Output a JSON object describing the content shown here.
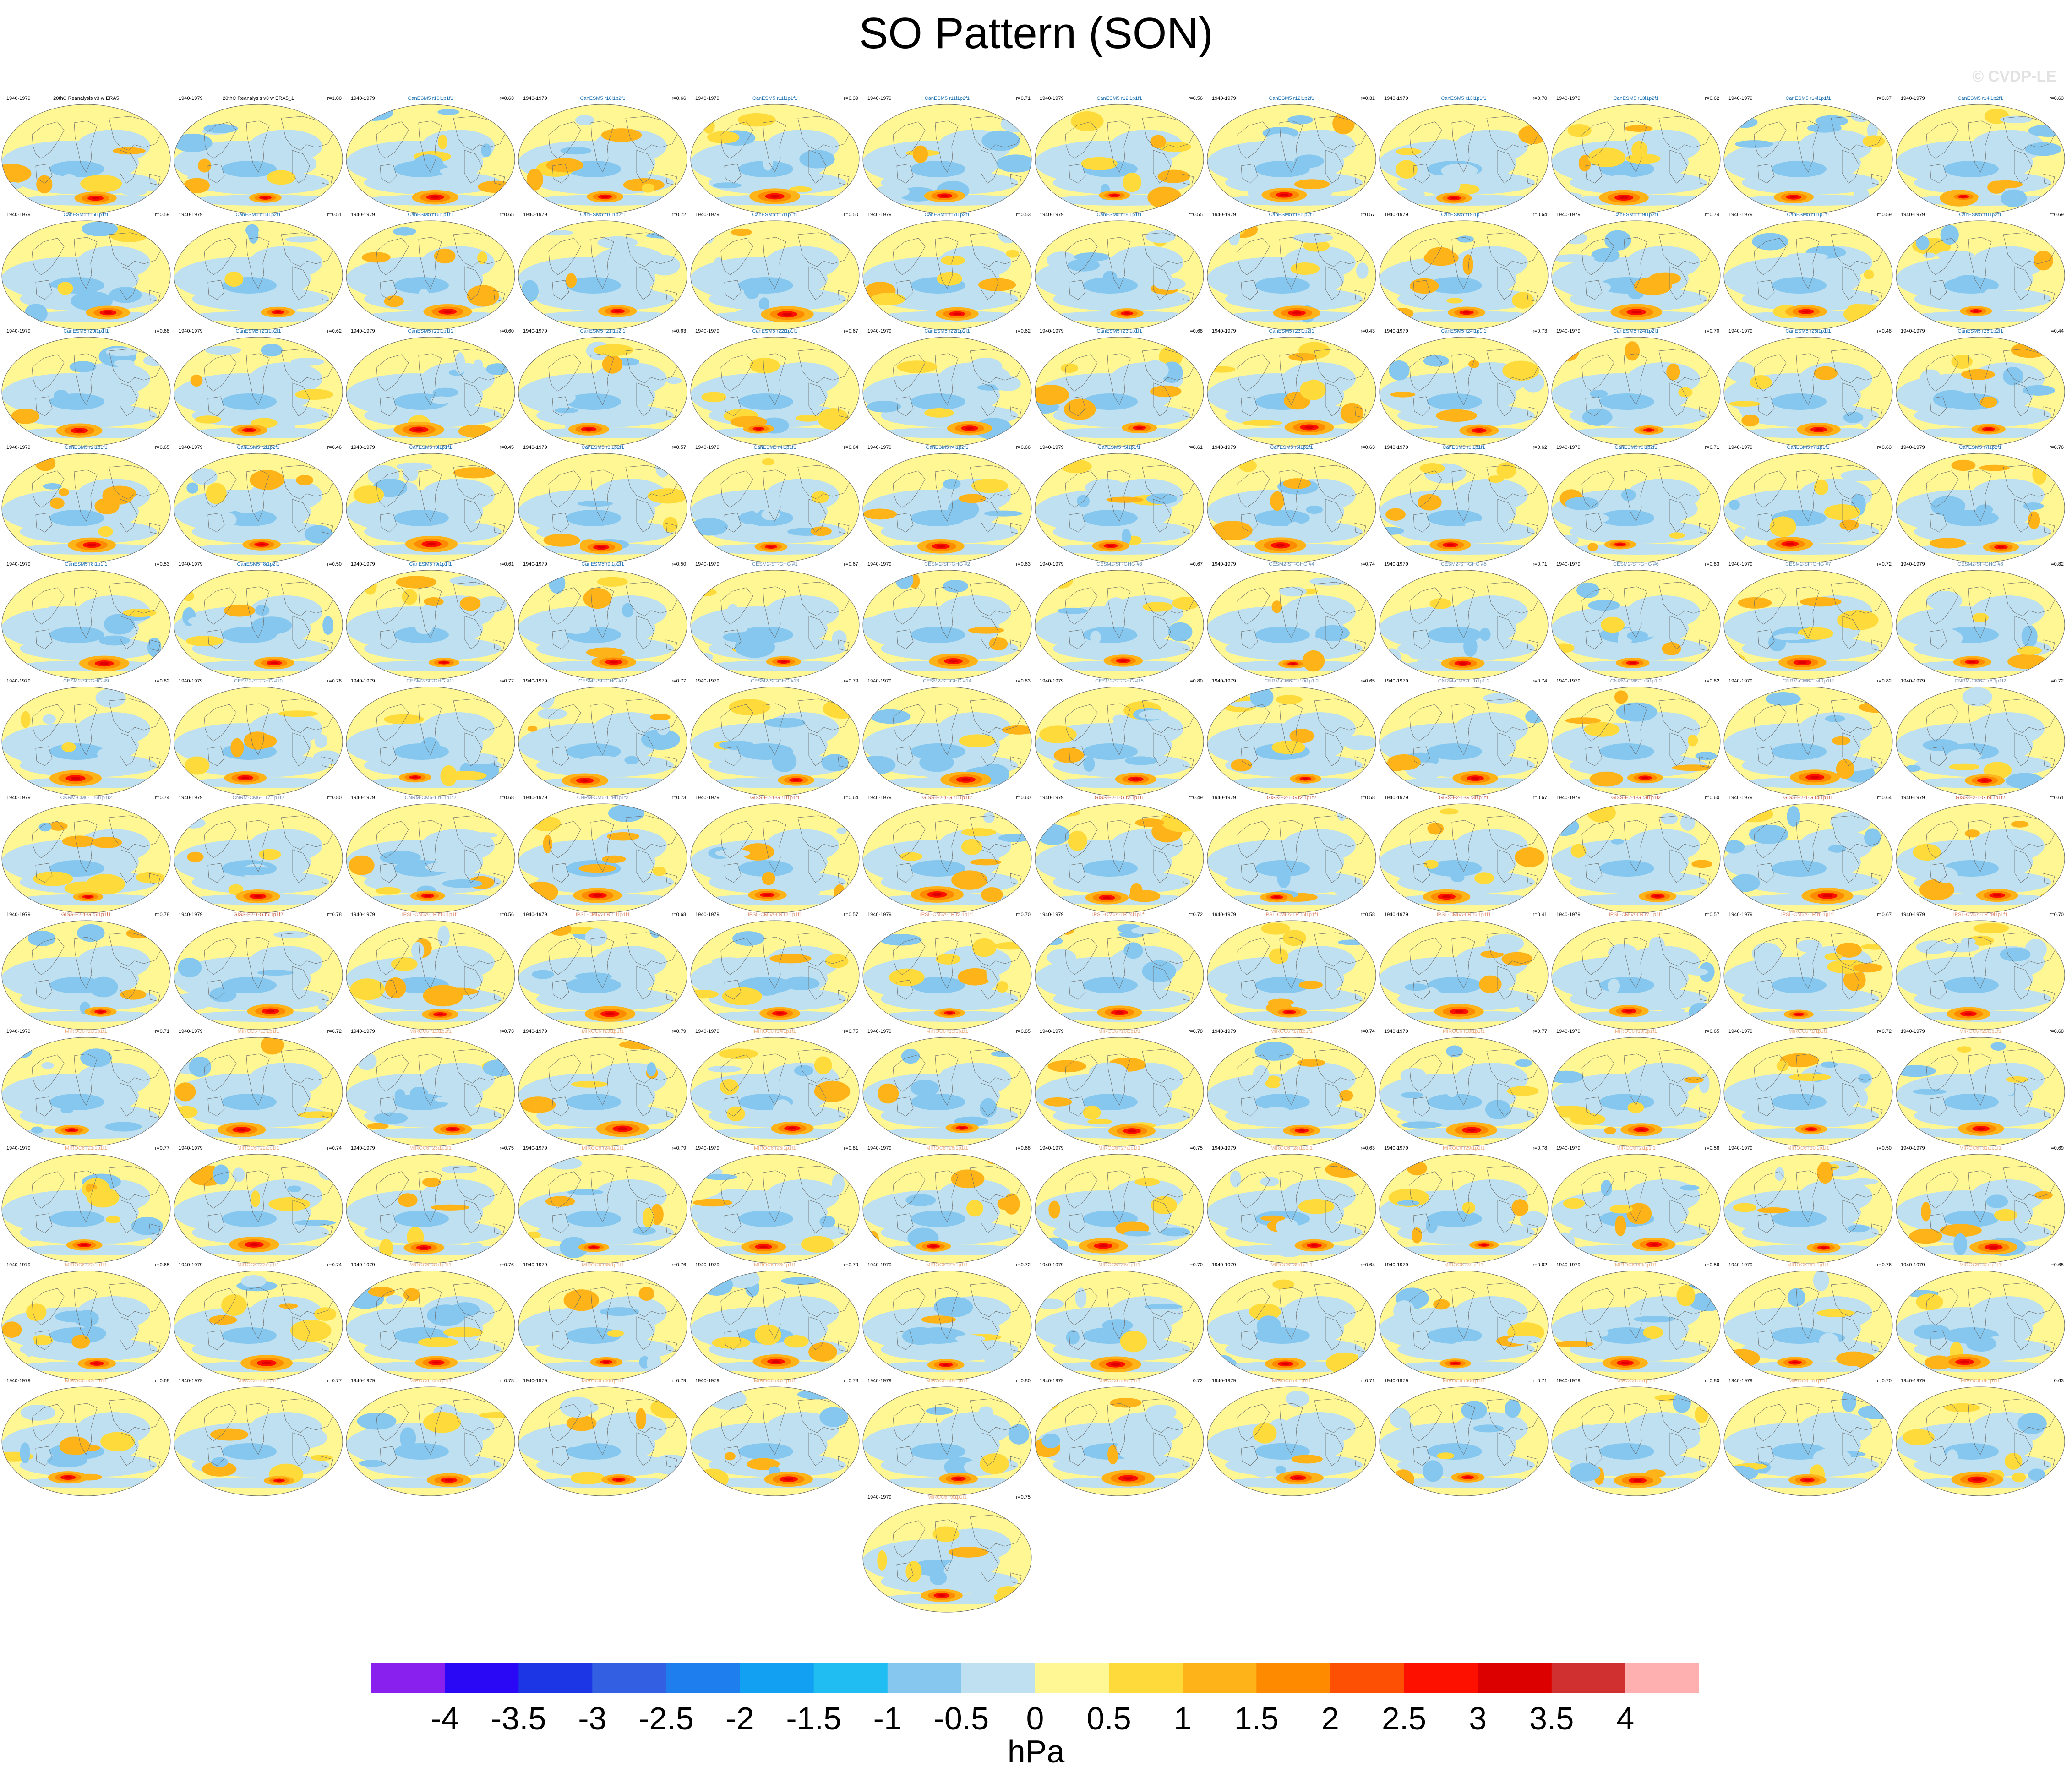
{
  "title": "SO Pattern (SON)",
  "watermark": "© CVDP-LE",
  "units": "hPa",
  "panel_period": "1940-1979",
  "colorbar": {
    "ticks": [
      "-4",
      "-3.5",
      "-3",
      "-2.5",
      "-2",
      "-1.5",
      "-1",
      "-0.5",
      "0",
      "0.5",
      "1",
      "1.5",
      "2",
      "2.5",
      "3",
      "3.5",
      "4"
    ],
    "colors": [
      "#8a20ee",
      "#2a08f5",
      "#1c35e5",
      "#3360e2",
      "#1f7eed",
      "#12a0f3",
      "#20bdf2",
      "#85c7ee",
      "#bfe0f0",
      "#fff694",
      "#fedb3a",
      "#feb419",
      "#fe8a00",
      "#fd5005",
      "#fe1000",
      "#dd0000",
      "#d03030",
      "#feb0b0"
    ]
  },
  "model_colors": {
    "obs": "#000000",
    "CanESM5": "#1a6eae",
    "CESM2-SF-GHG": "#6890b0",
    "CNRM-CM6-1": "#8090b0",
    "GISS-E2-1-G": "#c85a3a",
    "IPSL-CM6A-LR": "#e08c6c",
    "MIROC6": "#ecaa78"
  },
  "panels": [
    {
      "name": "20thC Reanalysis v3 w ERA5",
      "corr": "",
      "m": "obs"
    },
    {
      "name": "20thC Reanalysis v3 w ERA5_1",
      "corr": "r=1.00",
      "m": "obs"
    },
    {
      "name": "CanESM5 r10i1p1f1",
      "corr": "r=0.63",
      "m": "CanESM5"
    },
    {
      "name": "CanESM5 r10i1p2f1",
      "corr": "r=0.66",
      "m": "CanESM5"
    },
    {
      "name": "CanESM5 r11i1p1f1",
      "corr": "r=0.39",
      "m": "CanESM5"
    },
    {
      "name": "CanESM5 r11i1p2f1",
      "corr": "r=0.71",
      "m": "CanESM5"
    },
    {
      "name": "CanESM5 r12i1p1f1",
      "corr": "r=0.56",
      "m": "CanESM5"
    },
    {
      "name": "CanESM5 r12i1p2f1",
      "corr": "r=0.31",
      "m": "CanESM5"
    },
    {
      "name": "CanESM5 r13i1p1f1",
      "corr": "r=0.70",
      "m": "CanESM5"
    },
    {
      "name": "CanESM5 r13i1p2f1",
      "corr": "r=0.62",
      "m": "CanESM5"
    },
    {
      "name": "CanESM5 r14i1p1f1",
      "corr": "r=0.37",
      "m": "CanESM5"
    },
    {
      "name": "CanESM5 r14i1p2f1",
      "corr": "r=0.63",
      "m": "CanESM5"
    },
    {
      "name": "CanESM5 r15i1p1f1",
      "corr": "r=0.59",
      "m": "CanESM5"
    },
    {
      "name": "CanESM5 r15i1p2f1",
      "corr": "r=0.51",
      "m": "CanESM5"
    },
    {
      "name": "CanESM5 r16i1p1f1",
      "corr": "r=0.65",
      "m": "CanESM5"
    },
    {
      "name": "CanESM5 r16i1p2f1",
      "corr": "r=0.72",
      "m": "CanESM5"
    },
    {
      "name": "CanESM5 r17i1p1f1",
      "corr": "r=0.50",
      "m": "CanESM5"
    },
    {
      "name": "CanESM5 r17i1p2f1",
      "corr": "r=0.53",
      "m": "CanESM5"
    },
    {
      "name": "CanESM5 r18i1p1f1",
      "corr": "r=0.55",
      "m": "CanESM5"
    },
    {
      "name": "CanESM5 r18i1p2f1",
      "corr": "r=0.57",
      "m": "CanESM5"
    },
    {
      "name": "CanESM5 r19i1p1f1",
      "corr": "r=0.64",
      "m": "CanESM5"
    },
    {
      "name": "CanESM5 r19i1p2f1",
      "corr": "r=0.74",
      "m": "CanESM5"
    },
    {
      "name": "CanESM5 r1i1p1f1",
      "corr": "r=0.59",
      "m": "CanESM5"
    },
    {
      "name": "CanESM5 r1i1p2f1",
      "corr": "r=0.69",
      "m": "CanESM5"
    },
    {
      "name": "CanESM5 r20i1p1f1",
      "corr": "r=0.68",
      "m": "CanESM5"
    },
    {
      "name": "CanESM5 r20i1p2f1",
      "corr": "r=0.62",
      "m": "CanESM5"
    },
    {
      "name": "CanESM5 r21i1p1f1",
      "corr": "r=0.60",
      "m": "CanESM5"
    },
    {
      "name": "CanESM5 r21i1p2f1",
      "corr": "r=0.63",
      "m": "CanESM5"
    },
    {
      "name": "CanESM5 r22i1p1f1",
      "corr": "r=0.67",
      "m": "CanESM5"
    },
    {
      "name": "CanESM5 r22i1p2f1",
      "corr": "r=0.62",
      "m": "CanESM5"
    },
    {
      "name": "CanESM5 r23i1p1f1",
      "corr": "r=0.68",
      "m": "CanESM5"
    },
    {
      "name": "CanESM5 r23i1p2f1",
      "corr": "r=0.43",
      "m": "CanESM5"
    },
    {
      "name": "CanESM5 r24i1p1f1",
      "corr": "r=0.73",
      "m": "CanESM5"
    },
    {
      "name": "CanESM5 r24i1p2f1",
      "corr": "r=0.70",
      "m": "CanESM5"
    },
    {
      "name": "CanESM5 r25i1p1f1",
      "corr": "r=0.48",
      "m": "CanESM5"
    },
    {
      "name": "CanESM5 r25i1p2f1",
      "corr": "r=0.44",
      "m": "CanESM5"
    },
    {
      "name": "CanESM5 r2i1p1f1",
      "corr": "r=0.65",
      "m": "CanESM5"
    },
    {
      "name": "CanESM5 r2i1p2f1",
      "corr": "r=0.46",
      "m": "CanESM5"
    },
    {
      "name": "CanESM5 r3i1p1f1",
      "corr": "r=0.45",
      "m": "CanESM5"
    },
    {
      "name": "CanESM5 r3i1p2f1",
      "corr": "r=0.57",
      "m": "CanESM5"
    },
    {
      "name": "CanESM5 r4i1p1f1",
      "corr": "r=0.64",
      "m": "CanESM5"
    },
    {
      "name": "CanESM5 r4i1p2f1",
      "corr": "r=0.66",
      "m": "CanESM5"
    },
    {
      "name": "CanESM5 r5i1p1f1",
      "corr": "r=0.61",
      "m": "CanESM5"
    },
    {
      "name": "CanESM5 r5i1p2f1",
      "corr": "r=0.63",
      "m": "CanESM5"
    },
    {
      "name": "CanESM5 r6i1p1f1",
      "corr": "r=0.62",
      "m": "CanESM5"
    },
    {
      "name": "CanESM5 r6i1p2f1",
      "corr": "r=0.71",
      "m": "CanESM5"
    },
    {
      "name": "CanESM5 r7i1p1f1",
      "corr": "r=0.63",
      "m": "CanESM5"
    },
    {
      "name": "CanESM5 r7i1p2f1",
      "corr": "r=0.76",
      "m": "CanESM5"
    },
    {
      "name": "CanESM5 r8i1p1f1",
      "corr": "r=0.53",
      "m": "CanESM5"
    },
    {
      "name": "CanESM5 r8i1p2f1",
      "corr": "r=0.50",
      "m": "CanESM5"
    },
    {
      "name": "CanESM5 r9i1p1f1",
      "corr": "r=0.61",
      "m": "CanESM5"
    },
    {
      "name": "CanESM5 r9i1p2f1",
      "corr": "r=0.50",
      "m": "CanESM5"
    },
    {
      "name": "CESM2-SF-GHG #1",
      "corr": "r=0.67",
      "m": "CESM2-SF-GHG"
    },
    {
      "name": "CESM2-SF-GHG #2",
      "corr": "r=0.63",
      "m": "CESM2-SF-GHG"
    },
    {
      "name": "CESM2-SF-GHG #3",
      "corr": "r=0.67",
      "m": "CESM2-SF-GHG"
    },
    {
      "name": "CESM2-SF-GHG #4",
      "corr": "r=0.74",
      "m": "CESM2-SF-GHG"
    },
    {
      "name": "CESM2-SF-GHG #5",
      "corr": "r=0.71",
      "m": "CESM2-SF-GHG"
    },
    {
      "name": "CESM2-SF-GHG #6",
      "corr": "r=0.83",
      "m": "CESM2-SF-GHG"
    },
    {
      "name": "CESM2-SF-GHG #7",
      "corr": "r=0.72",
      "m": "CESM2-SF-GHG"
    },
    {
      "name": "CESM2-SF-GHG #8",
      "corr": "r=0.82",
      "m": "CESM2-SF-GHG"
    },
    {
      "name": "CESM2-SF-GHG #9",
      "corr": "r=0.82",
      "m": "CESM2-SF-GHG"
    },
    {
      "name": "CESM2-SF-GHG #10",
      "corr": "r=0.78",
      "m": "CESM2-SF-GHG"
    },
    {
      "name": "CESM2-SF-GHG #11",
      "corr": "r=0.77",
      "m": "CESM2-SF-GHG"
    },
    {
      "name": "CESM2-SF-GHG #12",
      "corr": "r=0.77",
      "m": "CESM2-SF-GHG"
    },
    {
      "name": "CESM2-SF-GHG #13",
      "corr": "r=0.79",
      "m": "CESM2-SF-GHG"
    },
    {
      "name": "CESM2-SF-GHG #14",
      "corr": "r=0.83",
      "m": "CESM2-SF-GHG"
    },
    {
      "name": "CESM2-SF-GHG #15",
      "corr": "r=0.80",
      "m": "CESM2-SF-GHG"
    },
    {
      "name": "CNRM-CM6-1 r10i1p1f2",
      "corr": "r=0.65",
      "m": "CNRM-CM6-1"
    },
    {
      "name": "CNRM-CM6-1 r1i1p1f2",
      "corr": "r=0.74",
      "m": "CNRM-CM6-1"
    },
    {
      "name": "CNRM-CM6-1 r3i1p1f2",
      "corr": "r=0.82",
      "m": "CNRM-CM6-1"
    },
    {
      "name": "CNRM-CM6-1 r4i1p1f2",
      "corr": "r=0.82",
      "m": "CNRM-CM6-1"
    },
    {
      "name": "CNRM-CM6-1 r5i1p1f2",
      "corr": "r=0.72",
      "m": "CNRM-CM6-1"
    },
    {
      "name": "CNRM-CM6-1 r6i1p1f2",
      "corr": "r=0.74",
      "m": "CNRM-CM6-1"
    },
    {
      "name": "CNRM-CM6-1 r7i1p1f2",
      "corr": "r=0.80",
      "m": "CNRM-CM6-1"
    },
    {
      "name": "CNRM-CM6-1 r8i1p1f2",
      "corr": "r=0.68",
      "m": "CNRM-CM6-1"
    },
    {
      "name": "CNRM-CM6-1 r9i1p1f2",
      "corr": "r=0.73",
      "m": "CNRM-CM6-1"
    },
    {
      "name": "GISS-E2-1-G r1i1p1f1",
      "corr": "r=0.64",
      "m": "GISS-E2-1-G"
    },
    {
      "name": "GISS-E2-1-G r1i1p1f2",
      "corr": "r=0.60",
      "m": "GISS-E2-1-G"
    },
    {
      "name": "GISS-E2-1-G r2i1p1f1",
      "corr": "r=0.49",
      "m": "GISS-E2-1-G"
    },
    {
      "name": "GISS-E2-1-G r2i1p1f2",
      "corr": "r=0.58",
      "m": "GISS-E2-1-G"
    },
    {
      "name": "GISS-E2-1-G r3i1p1f1",
      "corr": "r=0.67",
      "m": "GISS-E2-1-G"
    },
    {
      "name": "GISS-E2-1-G r3i1p1f2",
      "corr": "r=0.60",
      "m": "GISS-E2-1-G"
    },
    {
      "name": "GISS-E2-1-G r4i1p1f1",
      "corr": "r=0.64",
      "m": "GISS-E2-1-G"
    },
    {
      "name": "GISS-E2-1-G r4i1p1f2",
      "corr": "r=0.61",
      "m": "GISS-E2-1-G"
    },
    {
      "name": "GISS-E2-1-G r5i1p1f1",
      "corr": "r=0.78",
      "m": "GISS-E2-1-G"
    },
    {
      "name": "GISS-E2-1-G r5i1p1f2",
      "corr": "r=0.78",
      "m": "GISS-E2-1-G"
    },
    {
      "name": "IPSL-CM6A-LR r10i1p1f1",
      "corr": "r=0.56",
      "m": "IPSL-CM6A-LR"
    },
    {
      "name": "IPSL-CM6A-LR r1i1p1f1",
      "corr": "r=0.68",
      "m": "IPSL-CM6A-LR"
    },
    {
      "name": "IPSL-CM6A-LR r2i1p1f1",
      "corr": "r=0.57",
      "m": "IPSL-CM6A-LR"
    },
    {
      "name": "IPSL-CM6A-LR r3i1p1f1",
      "corr": "r=0.70",
      "m": "IPSL-CM6A-LR"
    },
    {
      "name": "IPSL-CM6A-LR r4i1p1f1",
      "corr": "r=0.72",
      "m": "IPSL-CM6A-LR"
    },
    {
      "name": "IPSL-CM6A-LR r5i1p1f1",
      "corr": "r=0.58",
      "m": "IPSL-CM6A-LR"
    },
    {
      "name": "IPSL-CM6A-LR r6i1p1f1",
      "corr": "r=0.41",
      "m": "IPSL-CM6A-LR"
    },
    {
      "name": "IPSL-CM6A-LR r7i1p1f1",
      "corr": "r=0.57",
      "m": "IPSL-CM6A-LR"
    },
    {
      "name": "IPSL-CM6A-LR r8i1p1f1",
      "corr": "r=0.67",
      "m": "IPSL-CM6A-LR"
    },
    {
      "name": "IPSL-CM6A-LR r9i1p1f1",
      "corr": "r=0.70",
      "m": "IPSL-CM6A-LR"
    },
    {
      "name": "MIROC6 r10i1p1f1",
      "corr": "r=0.71",
      "m": "MIROC6"
    },
    {
      "name": "MIROC6 r11i1p1f1",
      "corr": "r=0.72",
      "m": "MIROC6"
    },
    {
      "name": "MIROC6 r12i1p1f1",
      "corr": "r=0.73",
      "m": "MIROC6"
    },
    {
      "name": "MIROC6 r13i1p1f1",
      "corr": "r=0.79",
      "m": "MIROC6"
    },
    {
      "name": "MIROC6 r14i1p1f1",
      "corr": "r=0.75",
      "m": "MIROC6"
    },
    {
      "name": "MIROC6 r15i1p1f1",
      "corr": "r=0.85",
      "m": "MIROC6"
    },
    {
      "name": "MIROC6 r16i1p1f1",
      "corr": "r=0.78",
      "m": "MIROC6"
    },
    {
      "name": "MIROC6 r17i1p1f1",
      "corr": "r=0.74",
      "m": "MIROC6"
    },
    {
      "name": "MIROC6 r18i1p1f1",
      "corr": "r=0.77",
      "m": "MIROC6"
    },
    {
      "name": "MIROC6 r19i1p1f1",
      "corr": "r=0.65",
      "m": "MIROC6"
    },
    {
      "name": "MIROC6 r1i1p1f1",
      "corr": "r=0.72",
      "m": "MIROC6"
    },
    {
      "name": "MIROC6 r20i1p1f1",
      "corr": "r=0.68",
      "m": "MIROC6"
    },
    {
      "name": "MIROC6 r21i1p1f1",
      "corr": "r=0.77",
      "m": "MIROC6"
    },
    {
      "name": "MIROC6 r22i1p1f1",
      "corr": "r=0.74",
      "m": "MIROC6"
    },
    {
      "name": "MIROC6 r23i1p1f1",
      "corr": "r=0.75",
      "m": "MIROC6"
    },
    {
      "name": "MIROC6 r24i1p1f1",
      "corr": "r=0.79",
      "m": "MIROC6"
    },
    {
      "name": "MIROC6 r25i1p1f1",
      "corr": "r=0.81",
      "m": "MIROC6"
    },
    {
      "name": "MIROC6 r26i1p1f1",
      "corr": "r=0.68",
      "m": "MIROC6"
    },
    {
      "name": "MIROC6 r27i1p1f1",
      "corr": "r=0.75",
      "m": "MIROC6"
    },
    {
      "name": "MIROC6 r28i1p1f1",
      "corr": "r=0.63",
      "m": "MIROC6"
    },
    {
      "name": "MIROC6 r29i1p1f1",
      "corr": "r=0.78",
      "m": "MIROC6"
    },
    {
      "name": "MIROC6 r2i1p1f1",
      "corr": "r=0.58",
      "m": "MIROC6"
    },
    {
      "name": "MIROC6 r30i1p1f1",
      "corr": "r=0.50",
      "m": "MIROC6"
    },
    {
      "name": "MIROC6 r31i1p1f1",
      "corr": "r=0.69",
      "m": "MIROC6"
    },
    {
      "name": "MIROC6 r32i1p1f1",
      "corr": "r=0.65",
      "m": "MIROC6"
    },
    {
      "name": "MIROC6 r33i1p1f1",
      "corr": "r=0.74",
      "m": "MIROC6"
    },
    {
      "name": "MIROC6 r34i1p1f1",
      "corr": "r=0.76",
      "m": "MIROC6"
    },
    {
      "name": "MIROC6 r35i1p1f1",
      "corr": "r=0.76",
      "m": "MIROC6"
    },
    {
      "name": "MIROC6 r36i1p1f1",
      "corr": "r=0.79",
      "m": "MIROC6"
    },
    {
      "name": "MIROC6 r37i1p1f1",
      "corr": "r=0.72",
      "m": "MIROC6"
    },
    {
      "name": "MIROC6 r38i1p1f1",
      "corr": "r=0.70",
      "m": "MIROC6"
    },
    {
      "name": "MIROC6 r39i1p1f1",
      "corr": "r=0.64",
      "m": "MIROC6"
    },
    {
      "name": "MIROC6 r3i1p1f1",
      "corr": "r=0.62",
      "m": "MIROC6"
    },
    {
      "name": "MIROC6 r40i1p1f1",
      "corr": "r=0.56",
      "m": "MIROC6"
    },
    {
      "name": "MIROC6 r41i1p1f1",
      "corr": "r=0.76",
      "m": "MIROC6"
    },
    {
      "name": "MIROC6 r42i1p1f1",
      "corr": "r=0.65",
      "m": "MIROC6"
    },
    {
      "name": "MIROC6 r43i1p1f1",
      "corr": "r=0.68",
      "m": "MIROC6"
    },
    {
      "name": "MIROC6 r44i1p1f1",
      "corr": "r=0.77",
      "m": "MIROC6"
    },
    {
      "name": "MIROC6 r45i1p1f1",
      "corr": "r=0.78",
      "m": "MIROC6"
    },
    {
      "name": "MIROC6 r46i1p1f1",
      "corr": "r=0.79",
      "m": "MIROC6"
    },
    {
      "name": "MIROC6 r47i1p1f1",
      "corr": "r=0.78",
      "m": "MIROC6"
    },
    {
      "name": "MIROC6 r48i1p1f1",
      "corr": "r=0.80",
      "m": "MIROC6"
    },
    {
      "name": "MIROC6 r49i1p1f1",
      "corr": "r=0.72",
      "m": "MIROC6"
    },
    {
      "name": "MIROC6 r4i1p1f1",
      "corr": "r=0.71",
      "m": "MIROC6"
    },
    {
      "name": "MIROC6 r50i1p1f1",
      "corr": "r=0.71",
      "m": "MIROC6"
    },
    {
      "name": "MIROC6 r5i1p1f1",
      "corr": "r=0.80",
      "m": "MIROC6"
    },
    {
      "name": "MIROC6 r7i1p1f1",
      "corr": "r=0.70",
      "m": "MIROC6"
    },
    {
      "name": "MIROC6 r8i1p1f1",
      "corr": "r=0.63",
      "m": "MIROC6"
    },
    {
      "name": "MIROC6 r9i1p1f1",
      "corr": "r=0.75",
      "m": "MIROC6"
    }
  ]
}
